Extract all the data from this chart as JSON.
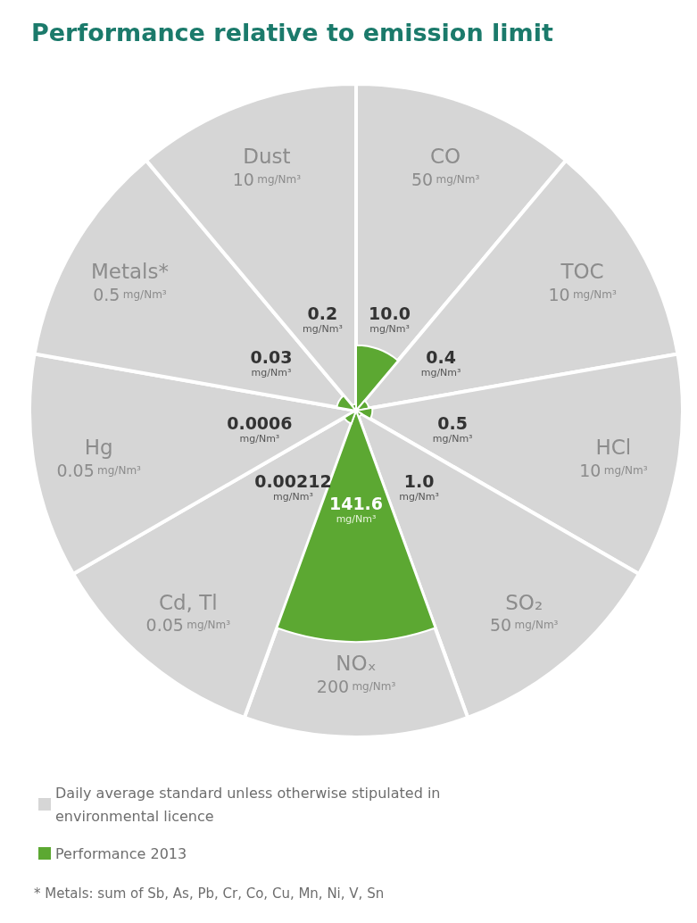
{
  "chart_data": {
    "type": "other",
    "title": "Performance relative to emission limit",
    "categories": [
      "CO",
      "TOC",
      "HCl",
      "SO₂",
      "NOₓ",
      "Cd, Tl",
      "Hg",
      "Metals*",
      "Dust"
    ],
    "ylabel": "mg/Nm³",
    "data_labels": true,
    "legend": "bottom",
    "series": [
      {
        "name": "Daily average standard unless otherwise stipulated in environmental licence",
        "color": "#d6d6d6",
        "values": [
          50,
          10,
          10,
          50,
          200,
          0.05,
          0.05,
          0.5,
          10
        ]
      },
      {
        "name": "Performance 2013",
        "color": "#5ca832",
        "values": [
          10.0,
          0.4,
          0.5,
          1.0,
          141.6,
          0.00212,
          0.0006,
          0.03,
          0.2
        ],
        "value_labels": [
          "10.0",
          "0.4",
          "0.5",
          "1.0",
          "141.6",
          "0.00212",
          "0.0006",
          "0.03",
          "0.2"
        ]
      }
    ],
    "annotations": [
      "* Metals: sum of Sb, As, Pb, Cr, Co, Cu, Mn, Ni, V, Sn"
    ]
  }
}
